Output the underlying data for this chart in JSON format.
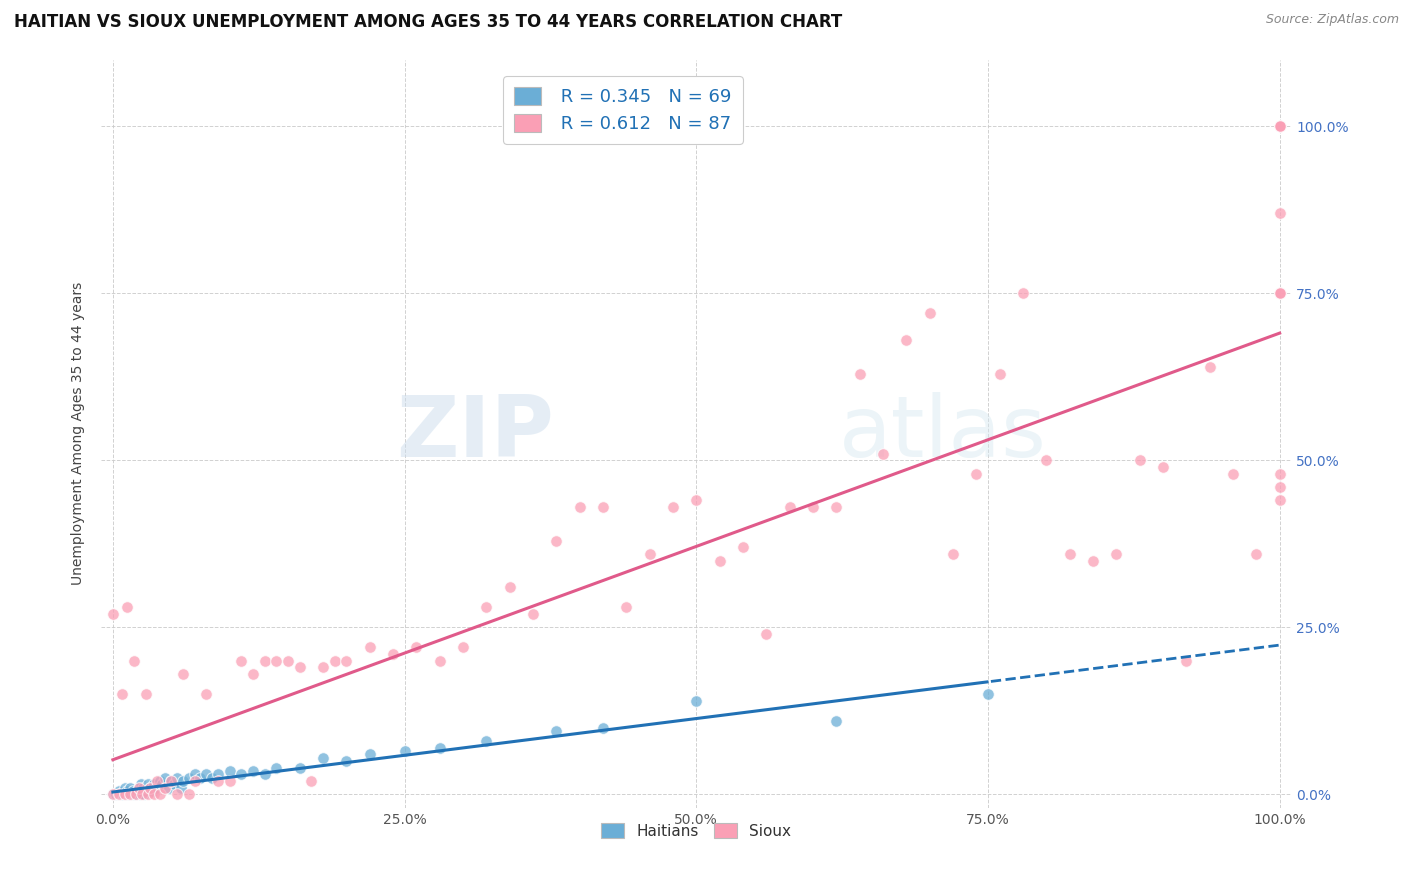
{
  "title": "HAITIAN VS SIOUX UNEMPLOYMENT AMONG AGES 35 TO 44 YEARS CORRELATION CHART",
  "source": "Source: ZipAtlas.com",
  "ylabel": "Unemployment Among Ages 35 to 44 years",
  "xlim": [
    0.0,
    1.0
  ],
  "ylim": [
    0.0,
    1.1
  ],
  "xticks": [
    0.0,
    0.25,
    0.5,
    0.75,
    1.0
  ],
  "xticklabels": [
    "0.0%",
    "25.0%",
    "50.0%",
    "75.0%",
    "100.0%"
  ],
  "yticks": [
    0.0,
    0.25,
    0.5,
    0.75,
    1.0
  ],
  "yticklabels": [
    "0.0%",
    "25.0%",
    "50.0%",
    "75.0%",
    "100.0%"
  ],
  "background_color": "#ffffff",
  "legend_r1": "R = 0.345",
  "legend_n1": "N = 69",
  "legend_r2": "R = 0.612",
  "legend_n2": "N = 87",
  "haitian_color": "#6baed6",
  "sioux_color": "#fa9fb5",
  "haitian_line_color": "#2171b5",
  "sioux_line_color": "#e05a8a",
  "title_fontsize": 12,
  "axis_label_fontsize": 10,
  "tick_fontsize": 10,
  "haitian_x": [
    0.0,
    0.002,
    0.003,
    0.004,
    0.005,
    0.005,
    0.006,
    0.007,
    0.008,
    0.009,
    0.01,
    0.01,
    0.011,
    0.012,
    0.013,
    0.014,
    0.015,
    0.015,
    0.016,
    0.017,
    0.018,
    0.019,
    0.02,
    0.021,
    0.022,
    0.023,
    0.024,
    0.025,
    0.026,
    0.027,
    0.028,
    0.029,
    0.03,
    0.032,
    0.034,
    0.035,
    0.037,
    0.04,
    0.042,
    0.045,
    0.048,
    0.05,
    0.052,
    0.055,
    0.058,
    0.06,
    0.065,
    0.07,
    0.075,
    0.08,
    0.085,
    0.09,
    0.1,
    0.11,
    0.12,
    0.13,
    0.14,
    0.16,
    0.18,
    0.2,
    0.22,
    0.25,
    0.28,
    0.32,
    0.38,
    0.42,
    0.5,
    0.62,
    0.75
  ],
  "haitian_y": [
    0.0,
    0.0,
    0.0,
    0.0,
    0.0,
    0.005,
    0.0,
    0.0,
    0.0,
    0.0,
    0.0,
    0.01,
    0.0,
    0.005,
    0.0,
    0.0,
    0.0,
    0.01,
    0.0,
    0.005,
    0.0,
    0.0,
    0.0,
    0.005,
    0.01,
    0.0,
    0.015,
    0.005,
    0.01,
    0.0,
    0.005,
    0.01,
    0.015,
    0.01,
    0.005,
    0.015,
    0.01,
    0.02,
    0.015,
    0.025,
    0.01,
    0.02,
    0.015,
    0.025,
    0.01,
    0.02,
    0.025,
    0.03,
    0.025,
    0.03,
    0.025,
    0.03,
    0.035,
    0.03,
    0.035,
    0.03,
    0.04,
    0.04,
    0.055,
    0.05,
    0.06,
    0.065,
    0.07,
    0.08,
    0.095,
    0.1,
    0.14,
    0.11,
    0.15
  ],
  "sioux_x": [
    0.0,
    0.0,
    0.005,
    0.008,
    0.01,
    0.012,
    0.015,
    0.018,
    0.02,
    0.022,
    0.025,
    0.028,
    0.03,
    0.032,
    0.035,
    0.038,
    0.04,
    0.045,
    0.05,
    0.055,
    0.06,
    0.065,
    0.07,
    0.08,
    0.09,
    0.1,
    0.11,
    0.12,
    0.13,
    0.14,
    0.15,
    0.16,
    0.17,
    0.18,
    0.19,
    0.2,
    0.22,
    0.24,
    0.26,
    0.28,
    0.3,
    0.32,
    0.34,
    0.36,
    0.38,
    0.4,
    0.42,
    0.44,
    0.46,
    0.48,
    0.5,
    0.52,
    0.54,
    0.56,
    0.58,
    0.6,
    0.62,
    0.64,
    0.66,
    0.68,
    0.7,
    0.72,
    0.74,
    0.76,
    0.78,
    0.8,
    0.82,
    0.84,
    0.86,
    0.88,
    0.9,
    0.92,
    0.94,
    0.96,
    0.98,
    1.0,
    1.0,
    1.0,
    1.0,
    1.0,
    1.0,
    1.0,
    1.0,
    1.0,
    1.0,
    1.0,
    1.0
  ],
  "sioux_y": [
    0.0,
    0.27,
    0.0,
    0.15,
    0.0,
    0.28,
    0.0,
    0.2,
    0.0,
    0.01,
    0.0,
    0.15,
    0.0,
    0.01,
    0.0,
    0.02,
    0.0,
    0.01,
    0.02,
    0.0,
    0.18,
    0.0,
    0.02,
    0.15,
    0.02,
    0.02,
    0.2,
    0.18,
    0.2,
    0.2,
    0.2,
    0.19,
    0.02,
    0.19,
    0.2,
    0.2,
    0.22,
    0.21,
    0.22,
    0.2,
    0.22,
    0.28,
    0.31,
    0.27,
    0.38,
    0.43,
    0.43,
    0.28,
    0.36,
    0.43,
    0.44,
    0.35,
    0.37,
    0.24,
    0.43,
    0.43,
    0.43,
    0.63,
    0.51,
    0.68,
    0.72,
    0.36,
    0.48,
    0.63,
    0.75,
    0.5,
    0.36,
    0.35,
    0.36,
    0.5,
    0.49,
    0.2,
    0.64,
    0.48,
    0.36,
    1.0,
    1.0,
    1.0,
    1.0,
    1.0,
    0.75,
    0.75,
    0.44,
    0.48,
    0.46,
    0.87,
    0.75
  ]
}
